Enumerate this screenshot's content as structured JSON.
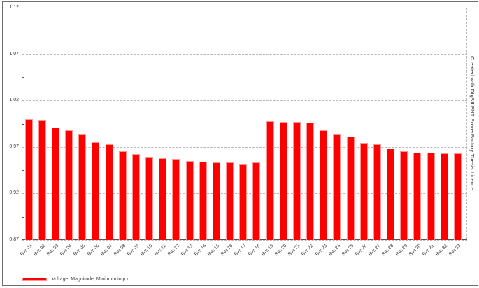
{
  "chart_data": {
    "type": "bar",
    "title": "",
    "xlabel": "",
    "ylabel": "",
    "categories": [
      "Bus 01",
      "Bus 02",
      "Bus 03",
      "Bus 04",
      "Bus 05",
      "Bus 06",
      "Bus 07",
      "Bus 08",
      "Bus 09",
      "Bus 10",
      "Bus 11",
      "Bus 12",
      "Bus 13",
      "Bus 14",
      "Bus 15",
      "Bus 16",
      "Bus 17",
      "Bus 18",
      "Bus 19",
      "Bus 20",
      "Bus 21",
      "Bus 22",
      "Bus 23",
      "Bus 24",
      "Bus 25",
      "Bus 26",
      "Bus 27",
      "Bus 28",
      "Bus 29",
      "Bus 30",
      "Bus 31",
      "Bus 32",
      "Bus 33"
    ],
    "values": [
      1.0,
      0.999,
      0.991,
      0.988,
      0.984,
      0.975,
      0.973,
      0.965,
      0.962,
      0.959,
      0.958,
      0.957,
      0.955,
      0.954,
      0.953,
      0.953,
      0.952,
      0.953,
      0.998,
      0.997,
      0.997,
      0.996,
      0.988,
      0.984,
      0.981,
      0.974,
      0.973,
      0.968,
      0.965,
      0.964,
      0.964,
      0.963,
      0.963
    ],
    "ylim": [
      0.87,
      1.12
    ],
    "yticks": [
      "1.12",
      "1.07",
      "1.02",
      "0.97",
      "0.92",
      "0.87"
    ],
    "grid": true,
    "legend_position": "bottom-left",
    "legend_label": "Voltage, Magnitude, Minimum in p.u.",
    "bar_color": "#ff0000",
    "bar_border_color": "#ff9494"
  },
  "watermark": "Created with DIgSILENT PowerFactory Thesis Licence"
}
